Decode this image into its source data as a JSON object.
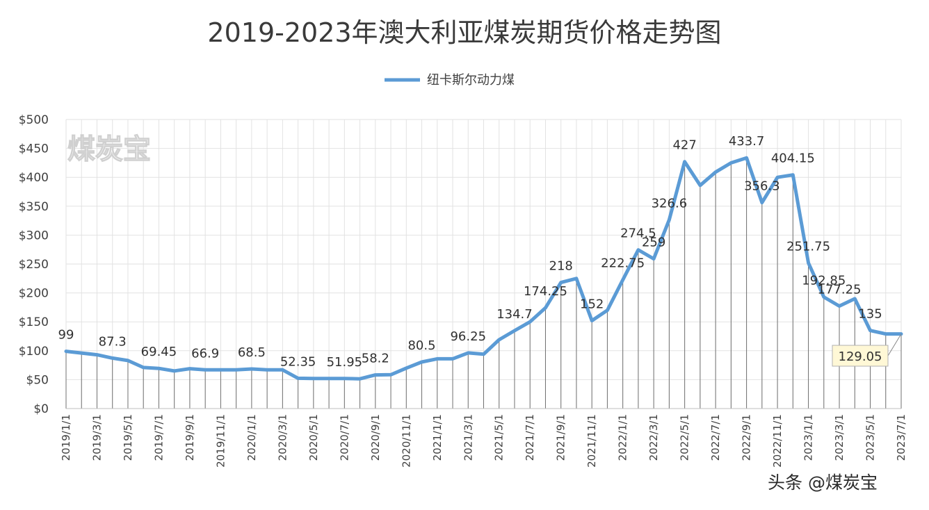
{
  "chart_data": {
    "type": "line",
    "title": "2019-2023年澳大利亚煤炭期货价格走势图",
    "series": [
      {
        "name": "纽卡斯尔动力煤",
        "color": "#5b9bd5",
        "x": [
          "2019/1/1",
          "2019/2/1",
          "2019/3/1",
          "2019/4/1",
          "2019/5/1",
          "2019/6/1",
          "2019/7/1",
          "2019/8/1",
          "2019/9/1",
          "2019/10/1",
          "2019/11/1",
          "2019/12/1",
          "2020/1/1",
          "2020/2/1",
          "2020/3/1",
          "2020/4/1",
          "2020/5/1",
          "2020/6/1",
          "2020/7/1",
          "2020/8/1",
          "2020/9/1",
          "2020/10/1",
          "2020/11/1",
          "2020/12/1",
          "2021/1/1",
          "2021/2/1",
          "2021/3/1",
          "2021/4/1",
          "2021/5/1",
          "2021/6/1",
          "2021/7/1",
          "2021/8/1",
          "2021/9/1",
          "2021/10/1",
          "2021/11/1",
          "2021/12/1",
          "2022/1/1",
          "2022/2/1",
          "2022/3/1",
          "2022/4/1",
          "2022/5/1",
          "2022/6/1",
          "2022/7/1",
          "2022/8/1",
          "2022/9/1",
          "2022/10/1",
          "2022/11/1",
          "2022/12/1",
          "2023/1/1",
          "2023/2/1",
          "2023/3/1",
          "2023/4/1",
          "2023/5/1",
          "2023/6/1",
          "2023/7/1"
        ],
        "values": [
          99,
          96,
          93,
          87.3,
          83,
          71,
          69.45,
          65,
          69,
          66.9,
          66.9,
          67,
          68.5,
          67,
          67,
          52.35,
          52,
          51.95,
          51.95,
          51.5,
          58.2,
          58.5,
          70,
          80.5,
          86,
          86,
          96.25,
          94,
          119,
          134.7,
          150,
          174.25,
          218,
          225,
          152,
          170,
          222.75,
          274.5,
          259,
          326.6,
          427,
          386,
          409,
          425,
          433.7,
          356.3,
          400,
          404.15,
          251.75,
          192.85,
          177.25,
          190,
          135,
          129.05,
          129.05
        ]
      }
    ],
    "data_labels": [
      {
        "i": 0,
        "text": "99"
      },
      {
        "i": 3,
        "text": "87.3"
      },
      {
        "i": 6,
        "text": "69.45"
      },
      {
        "i": 9,
        "text": "66.9"
      },
      {
        "i": 12,
        "text": "68.5"
      },
      {
        "i": 15,
        "text": "52.35"
      },
      {
        "i": 18,
        "text": "51.95"
      },
      {
        "i": 20,
        "text": "58.2"
      },
      {
        "i": 23,
        "text": "80.5"
      },
      {
        "i": 26,
        "text": "96.25"
      },
      {
        "i": 29,
        "text": "134.7"
      },
      {
        "i": 31,
        "text": "174.25"
      },
      {
        "i": 32,
        "text": "218"
      },
      {
        "i": 34,
        "text": "152"
      },
      {
        "i": 36,
        "text": "222.75"
      },
      {
        "i": 37,
        "text": "274.5"
      },
      {
        "i": 38,
        "text": "259"
      },
      {
        "i": 39,
        "text": "326.6"
      },
      {
        "i": 40,
        "text": "427"
      },
      {
        "i": 44,
        "text": "433.7"
      },
      {
        "i": 45,
        "text": "356.3"
      },
      {
        "i": 47,
        "text": "404.15"
      },
      {
        "i": 48,
        "text": "251.75"
      },
      {
        "i": 49,
        "text": "192.85"
      },
      {
        "i": 50,
        "text": "177.25"
      },
      {
        "i": 52,
        "text": "135"
      },
      {
        "i": 54,
        "text": "129.05",
        "boxed": true
      }
    ],
    "y_ticks": [
      "$0",
      "$50",
      "$100",
      "$150",
      "$200",
      "$250",
      "$300",
      "$350",
      "$400",
      "$450",
      "$500"
    ],
    "x_ticks": [
      "2019/1/1",
      "2019/3/1",
      "2019/5/1",
      "2019/7/1",
      "2019/9/1",
      "2019/11/1",
      "2020/1/1",
      "2020/3/1",
      "2020/5/1",
      "2020/7/1",
      "2020/9/1",
      "2020/11/1",
      "2021/1/1",
      "2021/3/1",
      "2021/5/1",
      "2021/7/1",
      "2021/9/1",
      "2021/11/1",
      "2022/1/1",
      "2022/3/1",
      "2022/5/1",
      "2022/7/1",
      "2022/9/1",
      "2022/11/1",
      "2023/1/1",
      "2023/3/1",
      "2023/5/1",
      "2023/7/1"
    ],
    "ylim": [
      0,
      500
    ],
    "xlabel": "",
    "ylabel": "",
    "grid": true,
    "drop_lines": true,
    "legend_position": "top-center"
  },
  "watermark": "煤炭宝",
  "source_credit": "头条 @煤炭宝"
}
